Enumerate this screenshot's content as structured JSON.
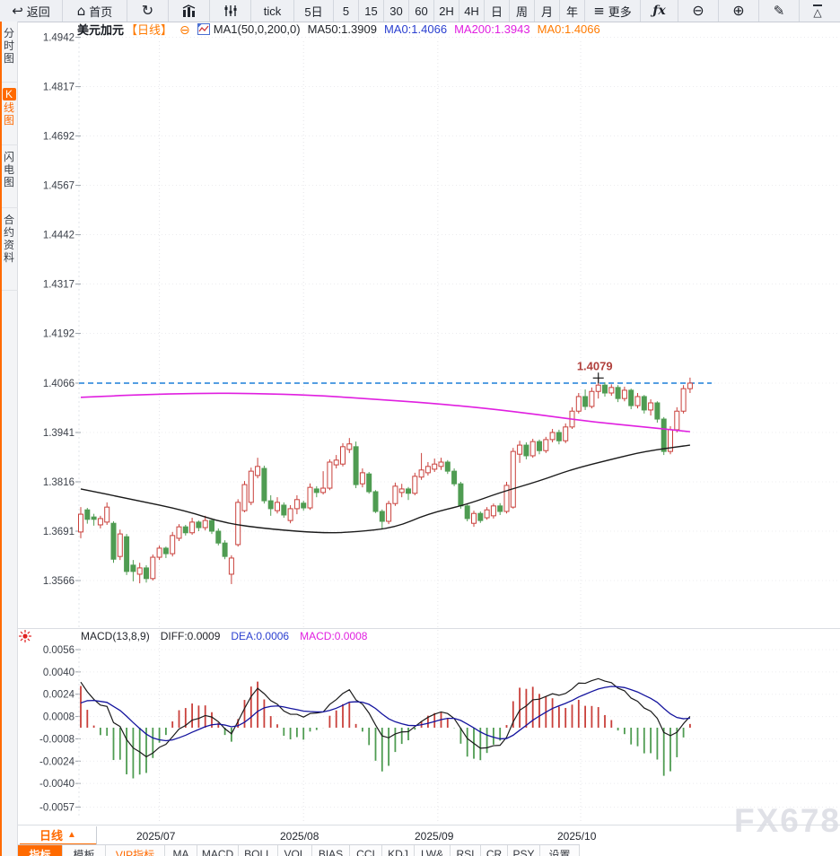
{
  "toolbar": {
    "items": [
      {
        "id": "back",
        "glyph": "↩",
        "label": "返回"
      },
      {
        "id": "home",
        "glyph": "⌂",
        "label": "首页"
      },
      {
        "id": "refresh",
        "glyph": "↻",
        "label": ""
      },
      {
        "id": "bar-chart",
        "label": ""
      },
      {
        "id": "candle-settings",
        "label": ""
      },
      {
        "id": "tick",
        "label": "tick"
      },
      {
        "id": "5d",
        "label": "5日"
      },
      {
        "id": "m5",
        "label": "5"
      },
      {
        "id": "m15",
        "label": "15"
      },
      {
        "id": "m30",
        "label": "30"
      },
      {
        "id": "m60",
        "label": "60"
      },
      {
        "id": "h2",
        "label": "2H"
      },
      {
        "id": "h4",
        "label": "4H"
      },
      {
        "id": "day",
        "label": "日"
      },
      {
        "id": "week",
        "label": "周"
      },
      {
        "id": "month",
        "label": "月"
      },
      {
        "id": "year",
        "label": "年"
      },
      {
        "id": "more",
        "glyph": "≡",
        "label": "更多"
      },
      {
        "id": "fx",
        "glyph": "ƒx",
        "label": ""
      },
      {
        "id": "zoom-out",
        "glyph": "⊖",
        "label": ""
      },
      {
        "id": "zoom-in",
        "glyph": "⊕",
        "label": ""
      },
      {
        "id": "draw",
        "glyph": "✎",
        "label": ""
      },
      {
        "id": "shapes",
        "glyph": "△",
        "label": ""
      }
    ]
  },
  "sidebar": {
    "tabs": [
      {
        "label": "分时图",
        "active": false
      },
      {
        "label": "K线图",
        "label_head": "K",
        "label_tail": "线图",
        "active": true
      },
      {
        "label": "闪电图",
        "active": false
      },
      {
        "label": "合约资料",
        "active": false
      }
    ]
  },
  "chart_header": {
    "symbol": "美元加元",
    "period_tag": "【日线】",
    "collapse_glyph": "⊖",
    "ma_settings": "MA1(50,0,200,0)",
    "ma50": "MA50:1.3909",
    "ma0_blue": "MA0:1.4066",
    "ma200": "MA200:1.3943",
    "ma0_orange": "MA0:1.4066"
  },
  "macd_header": {
    "title": "MACD(13,8,9)",
    "diff": "DIFF:0.0009",
    "dea": "DEA:0.0006",
    "macd": "MACD:0.0008"
  },
  "bottom": {
    "period_label": "日线",
    "period_arrow": "▲",
    "tabs": [
      {
        "label": "指标",
        "active": true
      },
      {
        "label": "模板"
      },
      {
        "label": "VIP指标",
        "vip": true
      },
      {
        "label": "MA"
      },
      {
        "label": "MACD"
      },
      {
        "label": "BOLL"
      },
      {
        "label": "VOL"
      },
      {
        "label": "BIAS"
      },
      {
        "label": "CCI"
      },
      {
        "label": "KDJ"
      },
      {
        "label": "LW&"
      },
      {
        "label": "RSI"
      },
      {
        "label": "CR"
      },
      {
        "label": "PSY"
      },
      {
        "label": "设置"
      }
    ]
  },
  "watermark": "FX678",
  "colors": {
    "accent_orange": "#ff6a00",
    "up_red": "#c9403b",
    "down_green": "#4f9c52",
    "ma200_magenta": "#e01fe0",
    "ma50_black": "#1a1a1a",
    "dea_blue": "#14149e",
    "diff_black": "#1a1a1a",
    "price_line_blue": "#1b7fd8",
    "annotation_red": "#b0403c",
    "grid": "#ececef",
    "axis_text": "#3c414a"
  },
  "chart_data": {
    "type": "candlestick",
    "symbol": "美元加元",
    "period": "日线",
    "last_price": 1.4066,
    "price_ticks": [
      1.4942,
      1.4817,
      1.4692,
      1.4567,
      1.4442,
      1.4317,
      1.4192,
      1.4066,
      1.3941,
      1.3816,
      1.3691,
      1.3566
    ],
    "macd_ticks": [
      0.0056,
      0.004,
      0.0024,
      0.0008,
      -0.0008,
      -0.0024,
      -0.004,
      -0.0057
    ],
    "months": [
      {
        "label": "2025/07",
        "bar": 12
      },
      {
        "label": "2025/08",
        "bar": 34
      },
      {
        "label": "2025/09",
        "bar": 54.5
      },
      {
        "label": "2025/10",
        "bar": 76.3
      }
    ],
    "high_annotation": {
      "bar": 79,
      "price": 1.4079,
      "label": "1.4079"
    },
    "macd_display": {
      "diff": 0.0009,
      "dea": 0.0006,
      "macd": 0.0008
    },
    "ma50": [
      [
        0,
        1.3798
      ],
      [
        8,
        1.3771
      ],
      [
        16,
        1.3743
      ],
      [
        22,
        1.3711
      ],
      [
        29,
        1.3696
      ],
      [
        37,
        1.3686
      ],
      [
        42,
        1.3689
      ],
      [
        48,
        1.37
      ],
      [
        53,
        1.3735
      ],
      [
        59,
        1.3759
      ],
      [
        64,
        1.3789
      ],
      [
        70,
        1.3818
      ],
      [
        75,
        1.3848
      ],
      [
        81,
        1.3873
      ],
      [
        86,
        1.3893
      ],
      [
        93,
        1.3909
      ]
    ],
    "ma200": [
      [
        0,
        1.403
      ],
      [
        8,
        1.4036
      ],
      [
        19,
        1.4041
      ],
      [
        29,
        1.4039
      ],
      [
        37,
        1.4034
      ],
      [
        45,
        1.4025
      ],
      [
        53,
        1.4016
      ],
      [
        62,
        1.4002
      ],
      [
        70,
        1.3986
      ],
      [
        78,
        1.3968
      ],
      [
        86,
        1.3955
      ],
      [
        93,
        1.3943
      ]
    ],
    "candles": [
      [
        1.3689,
        1.3752,
        1.3673,
        1.3734
      ],
      [
        1.3745,
        1.375,
        1.371,
        1.3721
      ],
      [
        1.3727,
        1.3735,
        1.3705,
        1.3721
      ],
      [
        1.3707,
        1.373,
        1.3698,
        1.3723
      ],
      [
        1.3714,
        1.3764,
        1.3707,
        1.3752
      ],
      [
        1.3711,
        1.3716,
        1.3611,
        1.362
      ],
      [
        1.3627,
        1.3695,
        1.3618,
        1.3684
      ],
      [
        1.3677,
        1.3684,
        1.358,
        1.3589
      ],
      [
        1.3605,
        1.3618,
        1.3564,
        1.3589
      ],
      [
        1.3582,
        1.3611,
        1.3559,
        1.3598
      ],
      [
        1.3598,
        1.3605,
        1.3561,
        1.3571
      ],
      [
        1.3571,
        1.3632,
        1.3566,
        1.3625
      ],
      [
        1.3625,
        1.3655,
        1.3618,
        1.3648
      ],
      [
        1.3648,
        1.3652,
        1.3623,
        1.3634
      ],
      [
        1.3634,
        1.3689,
        1.3627,
        1.368
      ],
      [
        1.3673,
        1.3709,
        1.3666,
        1.3702
      ],
      [
        1.3702,
        1.3707,
        1.368,
        1.3687
      ],
      [
        1.3687,
        1.3725,
        1.3682,
        1.3714
      ],
      [
        1.3714,
        1.3718,
        1.3691,
        1.37
      ],
      [
        1.37,
        1.373,
        1.3693,
        1.3718
      ],
      [
        1.3718,
        1.3721,
        1.3684,
        1.3691
      ],
      [
        1.3691,
        1.3698,
        1.3655,
        1.3661
      ],
      [
        1.3661,
        1.3668,
        1.362,
        1.3627
      ],
      [
        1.3582,
        1.363,
        1.3557,
        1.3623
      ],
      [
        1.3657,
        1.3772,
        1.3652,
        1.3764
      ],
      [
        1.3743,
        1.3818,
        1.3739,
        1.3809
      ],
      [
        1.3764,
        1.3852,
        1.3757,
        1.3843
      ],
      [
        1.3832,
        1.3877,
        1.3825,
        1.3855
      ],
      [
        1.385,
        1.3857,
        1.3761,
        1.3768
      ],
      [
        1.3768,
        1.3782,
        1.373,
        1.3748
      ],
      [
        1.3743,
        1.3777,
        1.3736,
        1.3764
      ],
      [
        1.3757,
        1.3764,
        1.3725,
        1.3732
      ],
      [
        1.3718,
        1.3757,
        1.3711,
        1.3748
      ],
      [
        1.3748,
        1.3782,
        1.3734,
        1.3771
      ],
      [
        1.3762,
        1.3768,
        1.3743,
        1.375
      ],
      [
        1.375,
        1.3812,
        1.3745,
        1.3802
      ],
      [
        1.3798,
        1.3805,
        1.3777,
        1.3789
      ],
      [
        1.3789,
        1.3843,
        1.3784,
        1.38
      ],
      [
        1.38,
        1.3873,
        1.3795,
        1.3866
      ],
      [
        1.3859,
        1.3884,
        1.385,
        1.3871
      ],
      [
        1.3861,
        1.3914,
        1.3855,
        1.3905
      ],
      [
        1.3898,
        1.3927,
        1.3889,
        1.3912
      ],
      [
        1.3905,
        1.3918,
        1.38,
        1.3809
      ],
      [
        1.3811,
        1.385,
        1.3802,
        1.3839
      ],
      [
        1.3836,
        1.3841,
        1.3786,
        1.3791
      ],
      [
        1.3791,
        1.3795,
        1.3737,
        1.3741
      ],
      [
        1.3741,
        1.3746,
        1.3695,
        1.3716
      ],
      [
        1.3716,
        1.3768,
        1.3709,
        1.3761
      ],
      [
        1.3761,
        1.3814,
        1.3755,
        1.3805
      ],
      [
        1.3789,
        1.3811,
        1.3777,
        1.3798
      ],
      [
        1.3798,
        1.3803,
        1.377,
        1.3787
      ],
      [
        1.3787,
        1.3839,
        1.3782,
        1.383
      ],
      [
        1.3828,
        1.3889,
        1.3821,
        1.3846
      ],
      [
        1.3839,
        1.3866,
        1.3832,
        1.3855
      ],
      [
        1.3848,
        1.3875,
        1.3841,
        1.3861
      ],
      [
        1.3855,
        1.3877,
        1.3846,
        1.3866
      ],
      [
        1.3866,
        1.3871,
        1.3836,
        1.3843
      ],
      [
        1.3843,
        1.385,
        1.3805,
        1.3811
      ],
      [
        1.3811,
        1.3816,
        1.3748,
        1.3755
      ],
      [
        1.3755,
        1.3761,
        1.3716,
        1.3723
      ],
      [
        1.3711,
        1.3743,
        1.3702,
        1.3736
      ],
      [
        1.3736,
        1.3741,
        1.3712,
        1.3718
      ],
      [
        1.3725,
        1.3752,
        1.372,
        1.3745
      ],
      [
        1.373,
        1.3761,
        1.3723,
        1.3755
      ],
      [
        1.3755,
        1.3762,
        1.3732,
        1.3741
      ],
      [
        1.3741,
        1.3816,
        1.3736,
        1.3807
      ],
      [
        1.3752,
        1.3902,
        1.3748,
        1.3893
      ],
      [
        1.3886,
        1.392,
        1.3864,
        1.3909
      ],
      [
        1.3909,
        1.3916,
        1.3873,
        1.3882
      ],
      [
        1.3882,
        1.3925,
        1.3877,
        1.3918
      ],
      [
        1.3918,
        1.3923,
        1.3886,
        1.3895
      ],
      [
        1.3895,
        1.393,
        1.3889,
        1.3923
      ],
      [
        1.3923,
        1.395,
        1.3916,
        1.3941
      ],
      [
        1.3941,
        1.3948,
        1.3911,
        1.392
      ],
      [
        1.392,
        1.3964,
        1.3914,
        1.3955
      ],
      [
        1.3955,
        1.4005,
        1.395,
        1.3995
      ],
      [
        1.3995,
        1.4041,
        1.3989,
        1.4032
      ],
      [
        1.4032,
        1.405,
        1.3998,
        1.4007
      ],
      [
        1.4007,
        1.4055,
        1.4002,
        1.4045
      ],
      [
        1.4045,
        1.4079,
        1.4027,
        1.4061
      ],
      [
        1.4061,
        1.4068,
        1.4032,
        1.4041
      ],
      [
        1.4041,
        1.4063,
        1.4034,
        1.4055
      ],
      [
        1.4055,
        1.4061,
        1.4018,
        1.4027
      ],
      [
        1.4027,
        1.4057,
        1.402,
        1.4048
      ],
      [
        1.4048,
        1.4052,
        1.4,
        1.4009
      ],
      [
        1.4009,
        1.4041,
        1.4002,
        1.4032
      ],
      [
        1.4032,
        1.4036,
        1.3989,
        1.3998
      ],
      [
        1.3998,
        1.4025,
        1.3984,
        1.4016
      ],
      [
        1.4016,
        1.402,
        1.3966,
        1.3975
      ],
      [
        1.3975,
        1.398,
        1.3884,
        1.3893
      ],
      [
        1.3893,
        1.3957,
        1.3886,
        1.3948
      ],
      [
        1.3948,
        1.4005,
        1.3941,
        1.3995
      ],
      [
        1.3995,
        1.4061,
        1.3989,
        1.4052
      ],
      [
        1.4052,
        1.408,
        1.4041,
        1.4066
      ]
    ]
  }
}
